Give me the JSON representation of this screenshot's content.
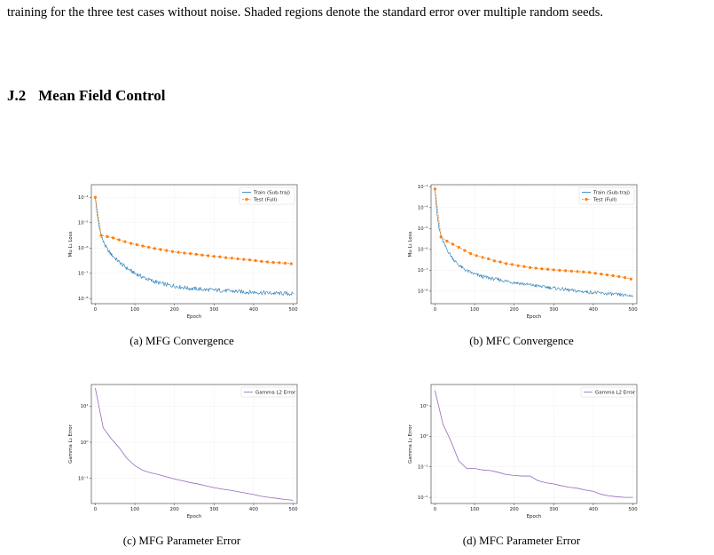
{
  "intro_text": "training for the three test cases without noise. Shaded regions denote the standard error over multiple random seeds.",
  "section": {
    "number": "J.2",
    "title": "Mean Field Control"
  },
  "colors": {
    "train": "#1f77b4",
    "test": "#ff7f0e",
    "gamma": "#9467bd"
  },
  "chart_data": [
    {
      "type": "line",
      "caption": "(a) MFG Convergence",
      "title": "",
      "xlabel": "Epoch",
      "ylabel": "Mu L₂ Loss",
      "xlim": [
        -10,
        510
      ],
      "ylim_log10": [
        -8.2,
        -3.5
      ],
      "scale": "log",
      "grid": true,
      "legend": "top-right",
      "xticks": [
        0,
        100,
        200,
        300,
        400,
        500
      ],
      "xtick_labels": [
        "0",
        "100",
        "200",
        "300",
        "400",
        "500"
      ],
      "yticks_log10": [
        -8,
        -7,
        -6,
        -5,
        -4
      ],
      "ytick_labels": [
        "10⁻⁸",
        "10⁻⁷",
        "10⁻⁶",
        "10⁻⁵",
        "10⁻⁴"
      ],
      "series": [
        {
          "name": "Train (Sub-traj)",
          "style": "train",
          "x": [
            0,
            5,
            10,
            20,
            30,
            40,
            50,
            60,
            70,
            80,
            90,
            100,
            120,
            140,
            160,
            180,
            200,
            220,
            240,
            260,
            280,
            300,
            320,
            340,
            360,
            380,
            400,
            420,
            440,
            460,
            480,
            500
          ],
          "y_log10": [
            -4.0,
            -4.7,
            -5.2,
            -5.75,
            -6.05,
            -6.25,
            -6.4,
            -6.55,
            -6.68,
            -6.8,
            -6.9,
            -7.0,
            -7.15,
            -7.28,
            -7.38,
            -7.45,
            -7.5,
            -7.55,
            -7.6,
            -7.62,
            -7.65,
            -7.66,
            -7.68,
            -7.7,
            -7.72,
            -7.74,
            -7.75,
            -7.76,
            -7.78,
            -7.79,
            -7.8,
            -7.81
          ]
        },
        {
          "name": "Test (Full)",
          "style": "test",
          "x": [
            0,
            15,
            30,
            45,
            60,
            75,
            90,
            105,
            120,
            135,
            150,
            165,
            180,
            195,
            210,
            225,
            240,
            255,
            270,
            285,
            300,
            315,
            330,
            345,
            360,
            375,
            390,
            405,
            420,
            435,
            450,
            465,
            480,
            495
          ],
          "y_log10": [
            -4.0,
            -5.5,
            -5.55,
            -5.6,
            -5.68,
            -5.75,
            -5.82,
            -5.87,
            -5.92,
            -5.97,
            -6.02,
            -6.06,
            -6.1,
            -6.14,
            -6.17,
            -6.2,
            -6.22,
            -6.25,
            -6.28,
            -6.3,
            -6.33,
            -6.35,
            -6.38,
            -6.4,
            -6.43,
            -6.45,
            -6.47,
            -6.5,
            -6.53,
            -6.55,
            -6.57,
            -6.58,
            -6.6,
            -6.62
          ]
        }
      ]
    },
    {
      "type": "line",
      "caption": "(b) MFC Convergence",
      "title": "",
      "xlabel": "Epoch",
      "ylabel": "Mu L₂ Loss",
      "xlim": [
        -10,
        510
      ],
      "ylim_log10": [
        -8.6,
        -2.9
      ],
      "scale": "log",
      "grid": true,
      "legend": "top-right",
      "xticks": [
        0,
        100,
        200,
        300,
        400,
        500
      ],
      "xtick_labels": [
        "0",
        "100",
        "200",
        "300",
        "400",
        "500"
      ],
      "yticks_log10": [
        -8,
        -7,
        -6,
        -5,
        -4,
        -3
      ],
      "ytick_labels": [
        "10⁻⁸",
        "10⁻⁷",
        "10⁻⁶",
        "10⁻⁵",
        "10⁻⁴",
        "10⁻³"
      ],
      "series": [
        {
          "name": "Train (Sub-traj)",
          "style": "train",
          "x": [
            0,
            5,
            10,
            20,
            30,
            40,
            50,
            60,
            70,
            80,
            90,
            100,
            120,
            140,
            160,
            180,
            200,
            220,
            240,
            260,
            280,
            300,
            320,
            340,
            360,
            380,
            400,
            420,
            440,
            460,
            480,
            500
          ],
          "y_log10": [
            -3.1,
            -4.3,
            -5.0,
            -5.6,
            -6.0,
            -6.3,
            -6.55,
            -6.75,
            -6.9,
            -7.02,
            -7.1,
            -7.18,
            -7.3,
            -7.38,
            -7.45,
            -7.52,
            -7.58,
            -7.64,
            -7.7,
            -7.75,
            -7.8,
            -7.85,
            -7.9,
            -7.95,
            -8.0,
            -8.03,
            -8.06,
            -8.1,
            -8.13,
            -8.16,
            -8.2,
            -8.22
          ]
        },
        {
          "name": "Test (Full)",
          "style": "test",
          "x": [
            0,
            15,
            30,
            45,
            60,
            75,
            90,
            105,
            120,
            135,
            150,
            165,
            180,
            195,
            210,
            225,
            240,
            255,
            270,
            285,
            300,
            315,
            330,
            345,
            360,
            375,
            390,
            405,
            420,
            435,
            450,
            465,
            480,
            495
          ],
          "y_log10": [
            -3.1,
            -5.4,
            -5.6,
            -5.75,
            -5.9,
            -6.05,
            -6.2,
            -6.3,
            -6.38,
            -6.45,
            -6.55,
            -6.6,
            -6.68,
            -6.72,
            -6.78,
            -6.82,
            -6.87,
            -6.9,
            -6.93,
            -6.95,
            -6.98,
            -7.0,
            -7.02,
            -7.04,
            -7.06,
            -7.08,
            -7.1,
            -7.14,
            -7.18,
            -7.22,
            -7.26,
            -7.3,
            -7.35,
            -7.42
          ]
        }
      ]
    },
    {
      "type": "line",
      "caption": "(c) MFG Parameter Error",
      "title": "",
      "xlabel": "Epoch",
      "ylabel": "Gamma L₂ Error",
      "xlim": [
        -10,
        510
      ],
      "ylim_log10": [
        -1.7,
        1.6
      ],
      "scale": "log",
      "grid": true,
      "legend": "top-right",
      "xticks": [
        0,
        100,
        200,
        300,
        400,
        500
      ],
      "xtick_labels": [
        "0",
        "100",
        "200",
        "300",
        "400",
        "500"
      ],
      "yticks_log10": [
        -1,
        0,
        1
      ],
      "ytick_labels": [
        "10⁻¹",
        "10⁰",
        "10¹"
      ],
      "series": [
        {
          "name": "Gamma L2 Error",
          "style": "gamma",
          "x": [
            0,
            20,
            40,
            60,
            80,
            100,
            120,
            140,
            160,
            180,
            200,
            220,
            240,
            260,
            280,
            300,
            320,
            340,
            360,
            380,
            400,
            420,
            440,
            460,
            480,
            500
          ],
          "y_log10": [
            1.5,
            0.4,
            0.1,
            -0.15,
            -0.45,
            -0.65,
            -0.78,
            -0.85,
            -0.9,
            -0.96,
            -1.02,
            -1.07,
            -1.12,
            -1.16,
            -1.21,
            -1.26,
            -1.3,
            -1.33,
            -1.37,
            -1.41,
            -1.45,
            -1.5,
            -1.53,
            -1.56,
            -1.59,
            -1.61
          ]
        }
      ]
    },
    {
      "type": "line",
      "caption": "(d) MFC Parameter Error",
      "title": "",
      "xlabel": "Epoch",
      "ylabel": "Gamma L₂ Error",
      "xlim": [
        -10,
        510
      ],
      "ylim_log10": [
        -2.2,
        1.7
      ],
      "scale": "log",
      "grid": true,
      "legend": "top-right",
      "xticks": [
        0,
        100,
        200,
        300,
        400,
        500
      ],
      "xtick_labels": [
        "0",
        "100",
        "200",
        "300",
        "400",
        "500"
      ],
      "yticks_log10": [
        -2,
        -1,
        0,
        1
      ],
      "ytick_labels": [
        "10⁻²",
        "10⁻¹",
        "10⁰",
        "10¹"
      ],
      "series": [
        {
          "name": "Gamma L2 Error",
          "style": "gamma",
          "x": [
            0,
            20,
            40,
            60,
            80,
            100,
            120,
            140,
            160,
            180,
            200,
            220,
            240,
            260,
            280,
            300,
            320,
            340,
            360,
            380,
            400,
            420,
            440,
            460,
            480,
            500
          ],
          "y_log10": [
            1.5,
            0.4,
            -0.15,
            -0.8,
            -1.05,
            -1.05,
            -1.1,
            -1.12,
            -1.18,
            -1.25,
            -1.28,
            -1.3,
            -1.3,
            -1.45,
            -1.52,
            -1.56,
            -1.62,
            -1.67,
            -1.7,
            -1.76,
            -1.8,
            -1.9,
            -1.95,
            -1.98,
            -2.0,
            -2.0
          ]
        }
      ]
    }
  ]
}
